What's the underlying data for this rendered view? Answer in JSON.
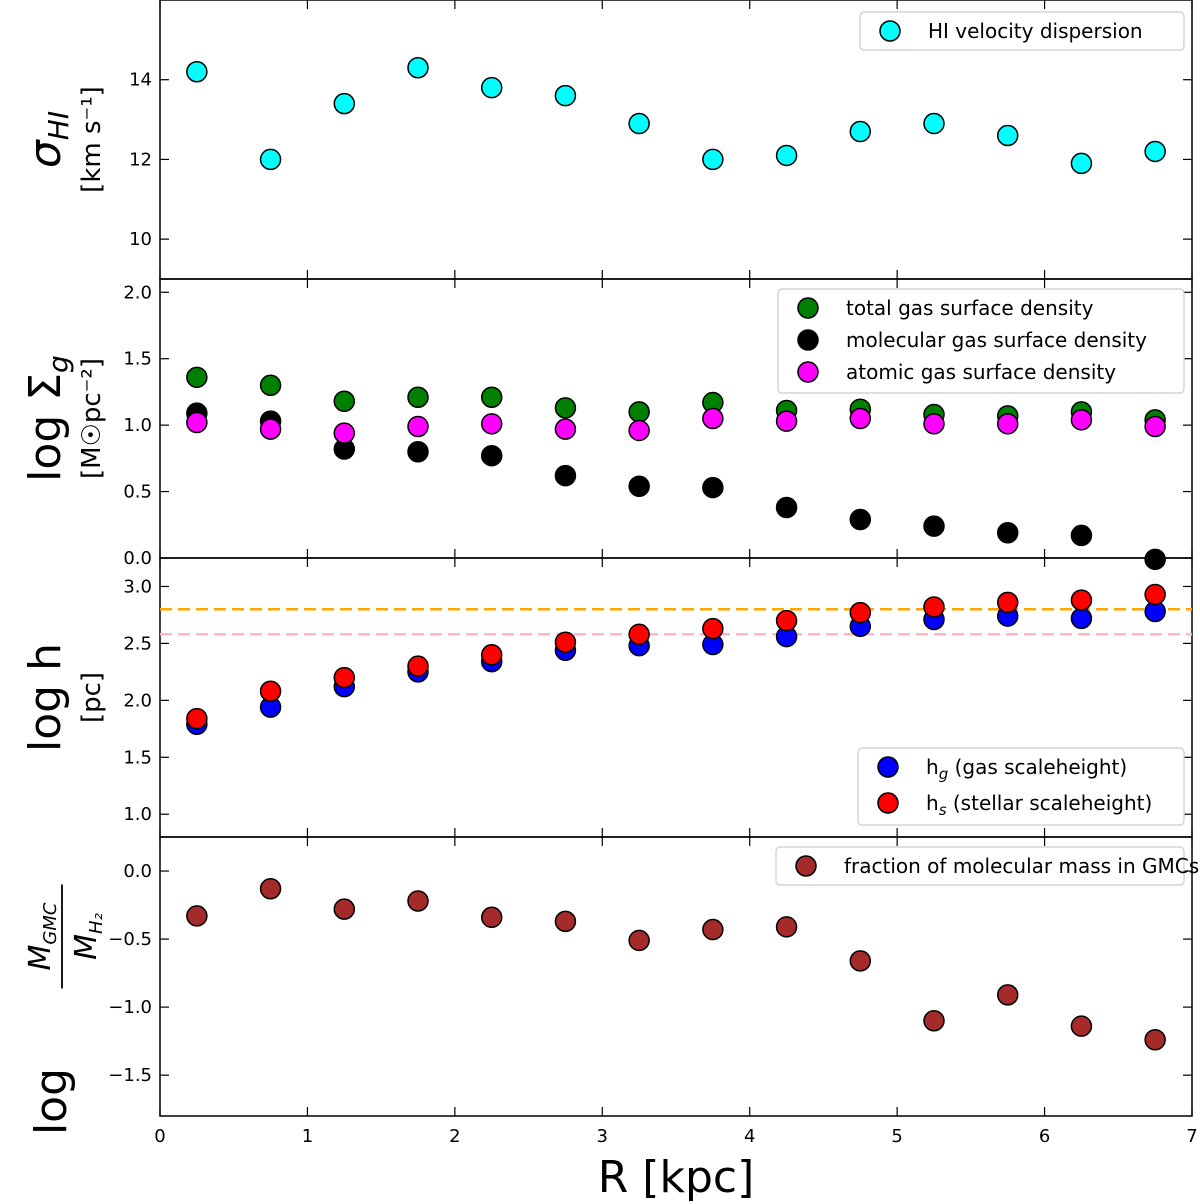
{
  "chart_data": [
    {
      "type": "scatter",
      "id": "sigma",
      "ylabel_main": "σ",
      "ylabel_main_sub": "HI",
      "ylabel_unit": "[km s⁻¹]",
      "ylim": [
        9.0,
        16.0
      ],
      "yticks": [
        10,
        12,
        14
      ],
      "ytick_labels": [
        "10",
        "12",
        "14"
      ],
      "legend_position": "top-right",
      "series": [
        {
          "name": "HI velocity dispersion",
          "color": "#00ffff",
          "x": [
            0.25,
            0.75,
            1.25,
            1.75,
            2.25,
            2.75,
            3.25,
            3.75,
            4.25,
            4.75,
            5.25,
            5.75,
            6.25,
            6.75
          ],
          "y": [
            14.2,
            12.0,
            13.4,
            14.3,
            13.8,
            13.6,
            12.9,
            12.0,
            12.1,
            12.7,
            12.9,
            12.6,
            11.9,
            12.2
          ]
        }
      ]
    },
    {
      "type": "scatter",
      "id": "sigma_g",
      "ylabel_main": "log Σ",
      "ylabel_main_sub": "g",
      "ylabel_unit": "[M☉pc⁻²]",
      "ylim": [
        0.0,
        2.1
      ],
      "yticks": [
        0.0,
        0.5,
        1.0,
        1.5,
        2.0
      ],
      "ytick_labels": [
        "0.0",
        "0.5",
        "1.0",
        "1.5",
        "2.0"
      ],
      "legend_position": "top-right",
      "series": [
        {
          "name": "total gas surface density",
          "color": "#007f00",
          "x": [
            0.25,
            0.75,
            1.25,
            1.75,
            2.25,
            2.75,
            3.25,
            3.75,
            4.25,
            4.75,
            5.25,
            5.75,
            6.25,
            6.75
          ],
          "y": [
            1.36,
            1.3,
            1.18,
            1.21,
            1.21,
            1.13,
            1.1,
            1.17,
            1.11,
            1.12,
            1.08,
            1.07,
            1.1,
            1.04
          ]
        },
        {
          "name": "molecular gas surface density",
          "color": "#000000",
          "x": [
            0.25,
            0.75,
            1.25,
            1.75,
            2.25,
            2.75,
            3.25,
            3.75,
            4.25,
            4.75,
            5.25,
            5.75,
            6.25,
            6.75
          ],
          "y": [
            1.09,
            1.03,
            0.82,
            0.8,
            0.77,
            0.62,
            0.54,
            0.53,
            0.38,
            0.29,
            0.24,
            0.19,
            0.17,
            -0.01
          ]
        },
        {
          "name": "atomic gas surface density",
          "color": "#ff00ff",
          "x": [
            0.25,
            0.75,
            1.25,
            1.75,
            2.25,
            2.75,
            3.25,
            3.75,
            4.25,
            4.75,
            5.25,
            5.75,
            6.25,
            6.75
          ],
          "y": [
            1.02,
            0.97,
            0.94,
            0.99,
            1.01,
            0.97,
            0.96,
            1.05,
            1.03,
            1.05,
            1.01,
            1.01,
            1.04,
            0.99
          ]
        }
      ]
    },
    {
      "type": "scatter",
      "id": "scaleheight",
      "ylabel_main": "log h",
      "ylabel_unit": "[pc]",
      "ylim": [
        0.8,
        3.25
      ],
      "yticks": [
        1.0,
        1.5,
        2.0,
        2.5,
        3.0
      ],
      "ytick_labels": [
        "1.0",
        "1.5",
        "2.0",
        "2.5",
        "3.0"
      ],
      "legend_position": "bottom-right",
      "hlines": [
        {
          "y": 2.8,
          "color": "#ffa500"
        },
        {
          "y": 2.58,
          "color": "#ffb6c1"
        }
      ],
      "series": [
        {
          "name": "h",
          "name_sub": "g",
          "name_rest": " (gas scaleheight)",
          "color": "#0000ff",
          "x": [
            0.25,
            0.75,
            1.25,
            1.75,
            2.25,
            2.75,
            3.25,
            3.75,
            4.25,
            4.75,
            5.25,
            5.75,
            6.25,
            6.75
          ],
          "y": [
            1.79,
            1.94,
            2.12,
            2.25,
            2.34,
            2.44,
            2.48,
            2.49,
            2.56,
            2.65,
            2.71,
            2.74,
            2.72,
            2.78
          ]
        },
        {
          "name": "h",
          "name_sub": "s",
          "name_rest": " (stellar scaleheight)",
          "color": "#ff0000",
          "x": [
            0.25,
            0.75,
            1.25,
            1.75,
            2.25,
            2.75,
            3.25,
            3.75,
            4.25,
            4.75,
            5.25,
            5.75,
            6.25,
            6.75
          ],
          "y": [
            1.84,
            2.08,
            2.2,
            2.3,
            2.4,
            2.51,
            2.58,
            2.63,
            2.7,
            2.77,
            2.82,
            2.86,
            2.88,
            2.93
          ]
        }
      ]
    },
    {
      "type": "scatter",
      "id": "gmc",
      "ylabel_main": "log",
      "ylabel_frac_num": "M",
      "ylabel_frac_num_sub": "GMC",
      "ylabel_frac_den": "M",
      "ylabel_frac_den_sub": "H₂",
      "ylim": [
        -1.8,
        0.25
      ],
      "yticks": [
        -1.5,
        -1.0,
        -0.5,
        0.0
      ],
      "ytick_labels": [
        "−1.5",
        "−1.0",
        "−0.5",
        "0.0"
      ],
      "legend_position": "top-right",
      "series": [
        {
          "name": "fraction of molecular mass in GMCs",
          "color": "#a52a2a",
          "x": [
            0.25,
            0.75,
            1.25,
            1.75,
            2.25,
            2.75,
            3.25,
            3.75,
            4.25,
            4.75,
            5.25,
            5.75,
            6.25,
            6.75
          ],
          "y": [
            -0.33,
            -0.13,
            -0.28,
            -0.22,
            -0.34,
            -0.37,
            -0.51,
            -0.43,
            -0.41,
            -0.66,
            -1.1,
            -0.91,
            -1.14,
            -1.24
          ]
        }
      ]
    }
  ],
  "xaxis": {
    "label": "R [kpc]",
    "xlim": [
      0,
      7
    ],
    "ticks": [
      0,
      1,
      2,
      3,
      4,
      5,
      6,
      7
    ],
    "tick_labels": [
      "0",
      "1",
      "2",
      "3",
      "4",
      "5",
      "6",
      "7"
    ]
  }
}
